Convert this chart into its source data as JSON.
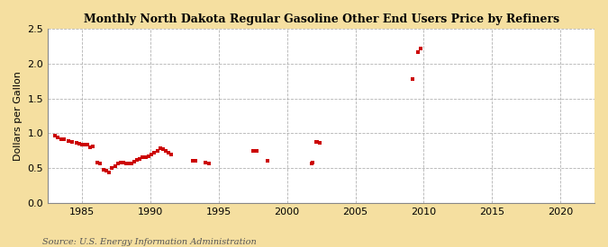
{
  "title": "Monthly North Dakota Regular Gasoline Other End Users Price by Refiners",
  "ylabel": "Dollars per Gallon",
  "source": "Source: U.S. Energy Information Administration",
  "background_color": "#f5dfa0",
  "plot_bg_color": "#ffffff",
  "marker_color": "#cc0000",
  "xlim": [
    1982.5,
    2022.5
  ],
  "ylim": [
    0.0,
    2.5
  ],
  "yticks": [
    0.0,
    0.5,
    1.0,
    1.5,
    2.0,
    2.5
  ],
  "xticks": [
    1985,
    1990,
    1995,
    2000,
    2005,
    2010,
    2015,
    2020
  ],
  "data_points": [
    [
      1983.0,
      0.96
    ],
    [
      1983.2,
      0.94
    ],
    [
      1983.5,
      0.92
    ],
    [
      1983.7,
      0.91
    ],
    [
      1984.0,
      0.89
    ],
    [
      1984.3,
      0.87
    ],
    [
      1984.6,
      0.86
    ],
    [
      1984.8,
      0.85
    ],
    [
      1985.0,
      0.84
    ],
    [
      1985.2,
      0.84
    ],
    [
      1985.4,
      0.83
    ],
    [
      1985.6,
      0.8
    ],
    [
      1985.8,
      0.81
    ],
    [
      1986.1,
      0.58
    ],
    [
      1986.3,
      0.56
    ],
    [
      1986.6,
      0.48
    ],
    [
      1986.8,
      0.46
    ],
    [
      1987.0,
      0.44
    ],
    [
      1987.2,
      0.5
    ],
    [
      1987.4,
      0.53
    ],
    [
      1987.6,
      0.56
    ],
    [
      1987.8,
      0.58
    ],
    [
      1988.0,
      0.58
    ],
    [
      1988.2,
      0.57
    ],
    [
      1988.4,
      0.56
    ],
    [
      1988.6,
      0.57
    ],
    [
      1988.8,
      0.59
    ],
    [
      1989.0,
      0.62
    ],
    [
      1989.2,
      0.63
    ],
    [
      1989.4,
      0.65
    ],
    [
      1989.7,
      0.66
    ],
    [
      1989.9,
      0.67
    ],
    [
      1990.1,
      0.69
    ],
    [
      1990.3,
      0.72
    ],
    [
      1990.5,
      0.75
    ],
    [
      1990.7,
      0.78
    ],
    [
      1990.9,
      0.77
    ],
    [
      1991.1,
      0.75
    ],
    [
      1991.3,
      0.72
    ],
    [
      1991.5,
      0.7
    ],
    [
      1993.1,
      0.6
    ],
    [
      1993.3,
      0.61
    ],
    [
      1994.0,
      0.58
    ],
    [
      1994.3,
      0.57
    ],
    [
      1997.5,
      0.75
    ],
    [
      1997.8,
      0.74
    ],
    [
      1998.6,
      0.6
    ],
    [
      2001.8,
      0.56
    ],
    [
      2001.9,
      0.58
    ],
    [
      2002.1,
      0.87
    ],
    [
      2002.2,
      0.88
    ],
    [
      2002.4,
      0.86
    ],
    [
      2009.2,
      1.78
    ],
    [
      2009.6,
      2.17
    ],
    [
      2009.8,
      2.22
    ]
  ]
}
